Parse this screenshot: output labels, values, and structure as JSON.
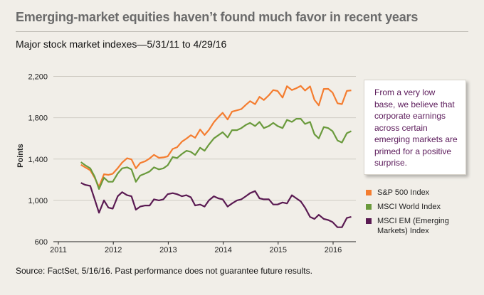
{
  "title": "Emerging-market equities haven’t found much favor in recent years",
  "subtitle": "Major stock market indexes—5/31/11 to 4/29/16",
  "callout": "From a very low base, we believe that corporate earnings across certain emerging markets are primed for a positive surprise.",
  "source": "Source: FactSet, 5/16/16. Past performance does not guarantee future results.",
  "colors": {
    "sp500": "#f47d30",
    "msci_world": "#6a9a3c",
    "msci_em": "#5a1a52"
  },
  "chart_data": {
    "type": "line",
    "title": "",
    "xlabel": "",
    "ylabel": "Points",
    "ylim": [
      600,
      2300
    ],
    "yticks": [
      600,
      1000,
      1400,
      1800,
      2200
    ],
    "ytick_labels": [
      "600",
      "1,000",
      "1,400",
      "1,800",
      "2,200"
    ],
    "xlim": [
      2011.41,
      2016.33
    ],
    "xticks": [
      2011,
      2012,
      2013,
      2014,
      2015,
      2016
    ],
    "xtick_labels": [
      "2011",
      "2012",
      "2013",
      "2014",
      "2015",
      "2016"
    ],
    "grid": "horizontal",
    "legend_position": "right",
    "x": [
      2011.41,
      2011.49,
      2011.58,
      2011.66,
      2011.74,
      2011.83,
      2011.91,
      2011.99,
      2012.08,
      2012.16,
      2012.25,
      2012.33,
      2012.41,
      2012.49,
      2012.58,
      2012.66,
      2012.74,
      2012.83,
      2012.91,
      2012.99,
      2013.08,
      2013.16,
      2013.25,
      2013.33,
      2013.41,
      2013.49,
      2013.58,
      2013.66,
      2013.74,
      2013.83,
      2013.91,
      2013.99,
      2014.08,
      2014.16,
      2014.25,
      2014.33,
      2014.41,
      2014.49,
      2014.58,
      2014.66,
      2014.74,
      2014.83,
      2014.91,
      2014.99,
      2015.08,
      2015.16,
      2015.25,
      2015.33,
      2015.41,
      2015.49,
      2015.58,
      2015.66,
      2015.74,
      2015.83,
      2015.91,
      2015.99,
      2016.08,
      2016.16,
      2016.25,
      2016.33
    ],
    "series": [
      {
        "name": "S&P 500 Index",
        "color": "#f47d30",
        "values": [
          1345,
          1320,
          1292,
          1219,
          1131,
          1253,
          1247,
          1258,
          1312,
          1366,
          1408,
          1397,
          1310,
          1362,
          1379,
          1406,
          1441,
          1412,
          1416,
          1426,
          1498,
          1515,
          1569,
          1598,
          1631,
          1606,
          1686,
          1633,
          1682,
          1757,
          1806,
          1848,
          1783,
          1859,
          1872,
          1884,
          1924,
          1961,
          1931,
          2003,
          1972,
          2018,
          2068,
          2059,
          1995,
          2105,
          2068,
          2086,
          2108,
          2063,
          2104,
          1973,
          1920,
          2079,
          2080,
          2044,
          1940,
          1932,
          2060,
          2065
        ]
      },
      {
        "name": "MSCI World Index",
        "color": "#6a9a3c",
        "values": [
          1370,
          1340,
          1310,
          1230,
          1110,
          1220,
          1180,
          1180,
          1260,
          1310,
          1320,
          1300,
          1180,
          1240,
          1260,
          1280,
          1320,
          1300,
          1310,
          1340,
          1420,
          1410,
          1450,
          1480,
          1470,
          1440,
          1510,
          1480,
          1540,
          1600,
          1630,
          1660,
          1610,
          1680,
          1680,
          1700,
          1730,
          1750,
          1720,
          1760,
          1700,
          1720,
          1750,
          1720,
          1700,
          1780,
          1760,
          1790,
          1790,
          1740,
          1760,
          1640,
          1600,
          1710,
          1700,
          1670,
          1580,
          1560,
          1650,
          1670
        ]
      },
      {
        "name": "MSCI EM (Emerging Markets) Index",
        "color": "#5a1a52",
        "values": [
          1170,
          1150,
          1140,
          1010,
          880,
          1000,
          930,
          920,
          1040,
          1080,
          1050,
          1040,
          910,
          940,
          950,
          950,
          1010,
          1000,
          1010,
          1060,
          1070,
          1060,
          1040,
          1050,
          1030,
          950,
          960,
          940,
          1000,
          1040,
          1020,
          1010,
          940,
          970,
          1000,
          1010,
          1040,
          1070,
          1090,
          1020,
          1010,
          1010,
          960,
          960,
          980,
          970,
          1050,
          1020,
          990,
          930,
          840,
          820,
          860,
          820,
          810,
          790,
          740,
          740,
          830,
          840
        ]
      }
    ]
  }
}
